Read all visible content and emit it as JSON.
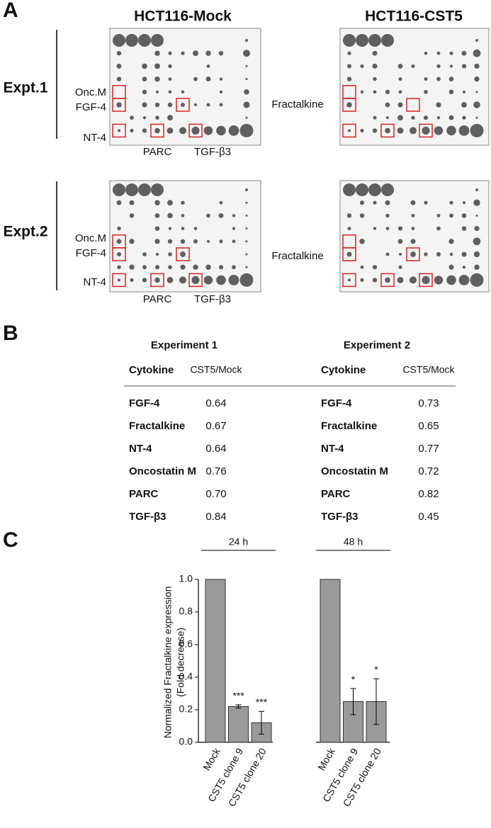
{
  "panel_a": {
    "letter": "A",
    "columns": [
      "HCT116-Mock",
      "HCT116-CST5"
    ],
    "experiments": [
      {
        "label": "Expt.1",
        "row_labels": [
          "Onc.M",
          "FGF-4",
          "NT-4"
        ],
        "side_label": "Fractalkine",
        "bottom_labels": [
          "PARC",
          "TGF-β3"
        ]
      },
      {
        "label": "Expt.2",
        "row_labels": [
          "Onc.M",
          "FGF-4",
          "NT-4"
        ],
        "side_label": "Fractalkine",
        "bottom_labels": [
          "PARC",
          "TGF-β3"
        ]
      }
    ]
  },
  "panel_b": {
    "letter": "B",
    "tables": [
      {
        "title": "Experiment 1",
        "header": [
          "Cytokine",
          "CST5/Mock"
        ],
        "rows": [
          [
            "FGF-4",
            "0.64"
          ],
          [
            "Fractalkine",
            "0.67"
          ],
          [
            "NT-4",
            "0.64"
          ],
          [
            "Oncostatin M",
            "0.76"
          ],
          [
            "PARC",
            "0.70"
          ],
          [
            "TGF-β3",
            "0.84"
          ]
        ]
      },
      {
        "title": "Experiment 2",
        "header": [
          "Cytokine",
          "CST5/Mock"
        ],
        "rows": [
          [
            "FGF-4",
            "0.73"
          ],
          [
            "Fractalkine",
            "0.65"
          ],
          [
            "NT-4",
            "0.77"
          ],
          [
            "Oncostatin M",
            "0.72"
          ],
          [
            "PARC",
            "0.82"
          ],
          [
            "TGF-β3",
            "0.45"
          ]
        ]
      }
    ]
  },
  "panel_c": {
    "letter": "C"
  },
  "chart_data": {
    "type": "bar",
    "y_label": [
      "Normalized Fractalkine expression",
      "(Fold decrease)"
    ],
    "color": "#9a9a9a",
    "groups": [
      {
        "label": "24 h",
        "categories": [
          "Mock",
          "CST5 clone 9",
          "CST5 clone 20"
        ],
        "values": [
          1.0,
          0.22,
          0.12
        ],
        "errors": [
          0,
          0.01,
          0.07
        ],
        "annotations": [
          null,
          "***",
          "***"
        ]
      },
      {
        "label": "48 h",
        "categories": [
          "Mock",
          "CST5 clone 9",
          "CST5 clone 20"
        ],
        "values": [
          1.0,
          0.25,
          0.25
        ],
        "errors": [
          0,
          0.08,
          0.14
        ],
        "annotations": [
          null,
          "*",
          "*"
        ]
      }
    ],
    "ylim": [
      0,
      1
    ],
    "yticks": [
      {
        "value": 0,
        "label": "0.0"
      },
      0.2,
      0.4,
      0.6,
      0.8,
      {
        "value": 1,
        "label": "1.0"
      }
    ]
  }
}
